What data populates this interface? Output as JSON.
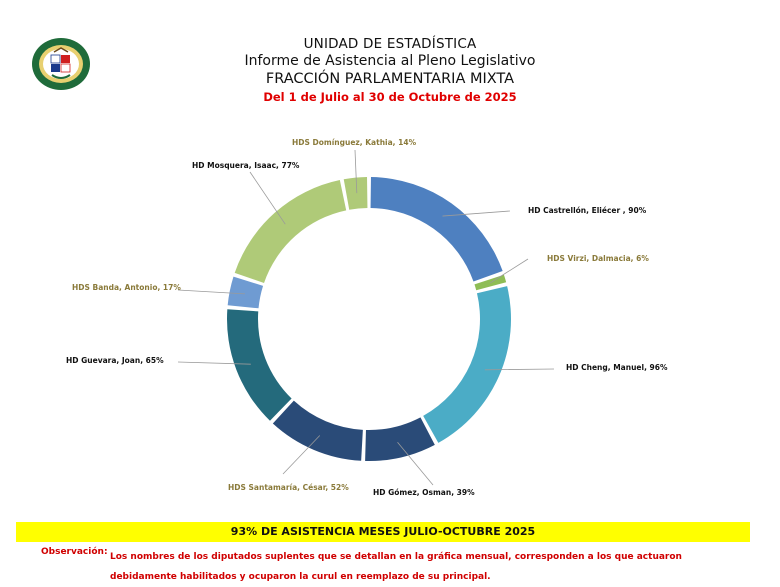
{
  "header": {
    "unit": "UNIDAD DE ESTADÍSTICA",
    "report": "Informe de Asistencia al Pleno Legislativo",
    "faction": "FRACCIÓN PARLAMENTARIA MIXTA",
    "period": "Del 1 de Julio al 30 de Octubre de 2025"
  },
  "logo": {
    "top_text": "ASAMBLEA NACIONAL",
    "bottom_text": "PANAMÁ",
    "colors": {
      "ring": "#1f6b3a",
      "inner": "#e8d070",
      "red": "#d02020",
      "blue": "#1a3a8c"
    }
  },
  "chart_data": {
    "type": "donut",
    "slices": [
      {
        "label": "HD Castrellón, Eliécer  , 90%",
        "value": 90,
        "color": "#4e80c0",
        "label_color": "#111111"
      },
      {
        "label": "HDS Virzi, Dalmacia, 6%",
        "value": 6,
        "color": "#8ebd55",
        "label_color": "#8a7a3a"
      },
      {
        "label": "HD Cheng, Manuel, 96%",
        "value": 96,
        "color": "#4bacc6",
        "label_color": "#111111"
      },
      {
        "label": "HD Gómez, Osman, 39%",
        "value": 39,
        "color": "#2a4b78",
        "label_color": "#111111"
      },
      {
        "label": "HDS Santamaría, César, 52%",
        "value": 52,
        "color": "#2a4b78",
        "label_color": "#8a7a3a"
      },
      {
        "label": "HD Guevara, Joan, 65%",
        "value": 65,
        "color": "#246a7c",
        "label_color": "#111111"
      },
      {
        "label": "HDS Banda, Antonio, 17%",
        "value": 17,
        "color": "#6f9bd2",
        "label_color": "#8a7a3a"
      },
      {
        "label": "HD Mosquera, Isaac, 77%",
        "value": 77,
        "color": "#afca78",
        "label_color": "#111111"
      },
      {
        "label": "HDS Domínguez, Kathia, 14%",
        "value": 14,
        "color": "#afca78",
        "label_color": "#8a7a3a"
      }
    ]
  },
  "summary": "93% DE ASISTENCIA MESES JULIO-OCTUBRE 2025",
  "observation": {
    "label": "Observación:",
    "text": "Los nombres de los diputados suplentes que se detallan en la gráfica mensual, corresponden a  los que actuaron debidamente habilitados y ocuparon la curul en reemplazo de su principal."
  }
}
